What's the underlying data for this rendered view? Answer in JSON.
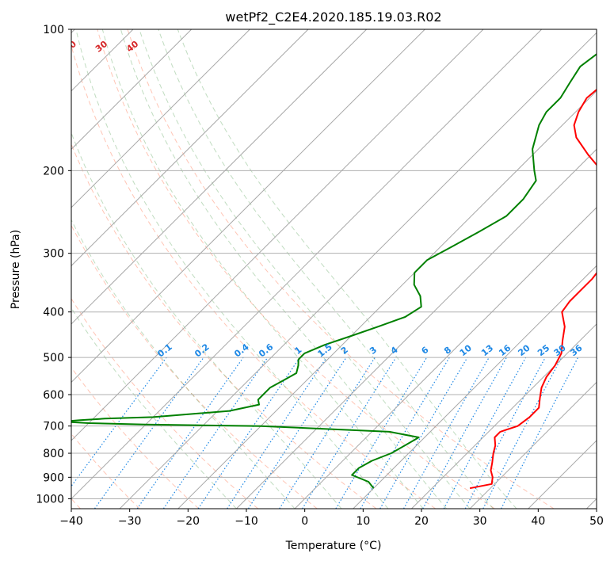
{
  "chart_data": {
    "type": "skew-t",
    "title": "wetPf2_C2E4.2020.185.19.03.R02",
    "xlabel": "Temperature (°C)",
    "ylabel": "Pressure (hPa)",
    "xlim": [
      -40,
      50
    ],
    "ylim": [
      1050,
      100
    ],
    "y_scale": "log",
    "x_ticks": [
      "−40",
      "−30",
      "−20",
      "−10",
      "0",
      "10",
      "20",
      "30",
      "40",
      "50"
    ],
    "y_ticks": [
      "100",
      "200",
      "300",
      "400",
      "500",
      "600",
      "700",
      "800",
      "900",
      "1000"
    ],
    "grid": true,
    "series": [
      {
        "role": "temperature",
        "color": "#ff0000",
        "p": [
          950,
          930,
          900,
          870,
          840,
          800,
          770,
          740,
          720,
          700,
          670,
          640,
          610,
          580,
          550,
          520,
          490,
          460,
          430,
          400,
          380,
          360,
          340,
          320,
          300,
          280,
          260,
          240,
          220,
          200,
          185,
          170,
          160,
          150,
          140,
          130,
          120,
          110,
          100
        ],
        "temperature": [
          26.5,
          29.5,
          28.5,
          27,
          26,
          24.5,
          23.5,
          22,
          22,
          24,
          24.5,
          24.5,
          23,
          21.5,
          20.5,
          20,
          19,
          17,
          15,
          12,
          11.5,
          11.5,
          11.5,
          11,
          9.5,
          7,
          4,
          1.5,
          -2,
          -5.5,
          -10.5,
          -15.5,
          -18,
          -19.5,
          -20.5,
          -20,
          -19,
          -18,
          -18
        ]
      },
      {
        "role": "dewpoint",
        "color": "#008000",
        "p": [
          950,
          920,
          890,
          860,
          830,
          800,
          770,
          740,
          720,
          700,
          695,
          690,
          685,
          680,
          675,
          670,
          650,
          630,
          615,
          600,
          580,
          560,
          540,
          520,
          505,
          490,
          470,
          450,
          430,
          410,
          390,
          370,
          350,
          330,
          310,
          290,
          270,
          250,
          230,
          210,
          200,
          180,
          160,
          150,
          140,
          130,
          120,
          110,
          100
        ],
        "dewpoint": [
          10,
          8,
          4,
          4,
          5,
          7,
          8,
          9,
          3,
          -20,
          -40,
          -50,
          -55,
          -52,
          -48,
          -40,
          -28,
          -24,
          -25,
          -25,
          -25,
          -24,
          -23,
          -24,
          -25,
          -25,
          -23,
          -20,
          -17,
          -14,
          -13,
          -15,
          -18,
          -20,
          -20,
          -18,
          -16,
          -14,
          -14,
          -15,
          -17,
          -21,
          -24,
          -25,
          -25,
          -26,
          -27,
          -26,
          -26
        ]
      }
    ],
    "dry_adiabats_degC": [
      -100,
      -90,
      -80,
      -70,
      -60,
      -50,
      -40,
      -30,
      -20,
      -10,
      0,
      10,
      20,
      30,
      40
    ],
    "mixing_ratio_g_per_kg": [
      "0.1",
      "0.2",
      "0.4",
      "0.6",
      "1",
      "1.5",
      "2",
      "3",
      "4",
      "6",
      "8",
      "10",
      "13",
      "16",
      "20",
      "25",
      "30",
      "36"
    ],
    "colors": {
      "temperature": "#ff0000",
      "dewpoint": "#008000",
      "dry_adiabat_label": "#1f77b4",
      "moist_adiabat_label": "#d62728",
      "mixing_ratio": "#1e88e5",
      "zero_label": "#777777"
    }
  }
}
